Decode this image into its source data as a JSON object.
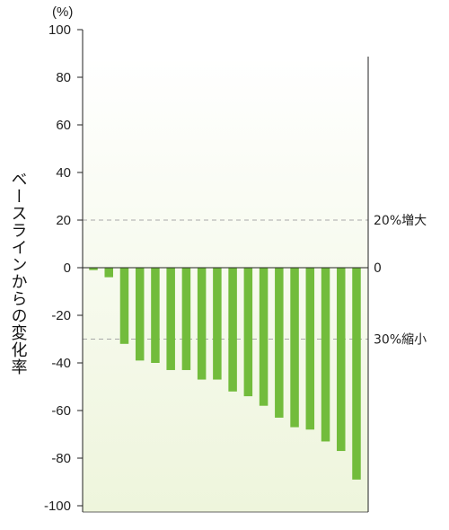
{
  "chart_data": {
    "type": "bar",
    "unit_label": "(%)",
    "ylabel": "ベースラインからの変化率",
    "ylim": [
      -100,
      100
    ],
    "yticks": [
      100,
      80,
      60,
      40,
      20,
      0,
      -20,
      -40,
      -60,
      -80,
      -100
    ],
    "values": [
      -1,
      -4,
      -32,
      -39,
      -40,
      -43,
      -43,
      -47,
      -47,
      -52,
      -54,
      -58,
      -63,
      -67,
      -68,
      -73,
      -77,
      -89
    ],
    "reference_lines": [
      {
        "value": 20,
        "label": "20%増大",
        "style": "dashed"
      },
      {
        "value": 0,
        "label": "0",
        "style": "solid"
      },
      {
        "value": -30,
        "label": "30%縮小",
        "style": "dashed"
      }
    ],
    "bar_color": "#72BC3C",
    "background_gradient": [
      "#EEF5DC",
      "#FFFFFF"
    ],
    "grid": false
  }
}
